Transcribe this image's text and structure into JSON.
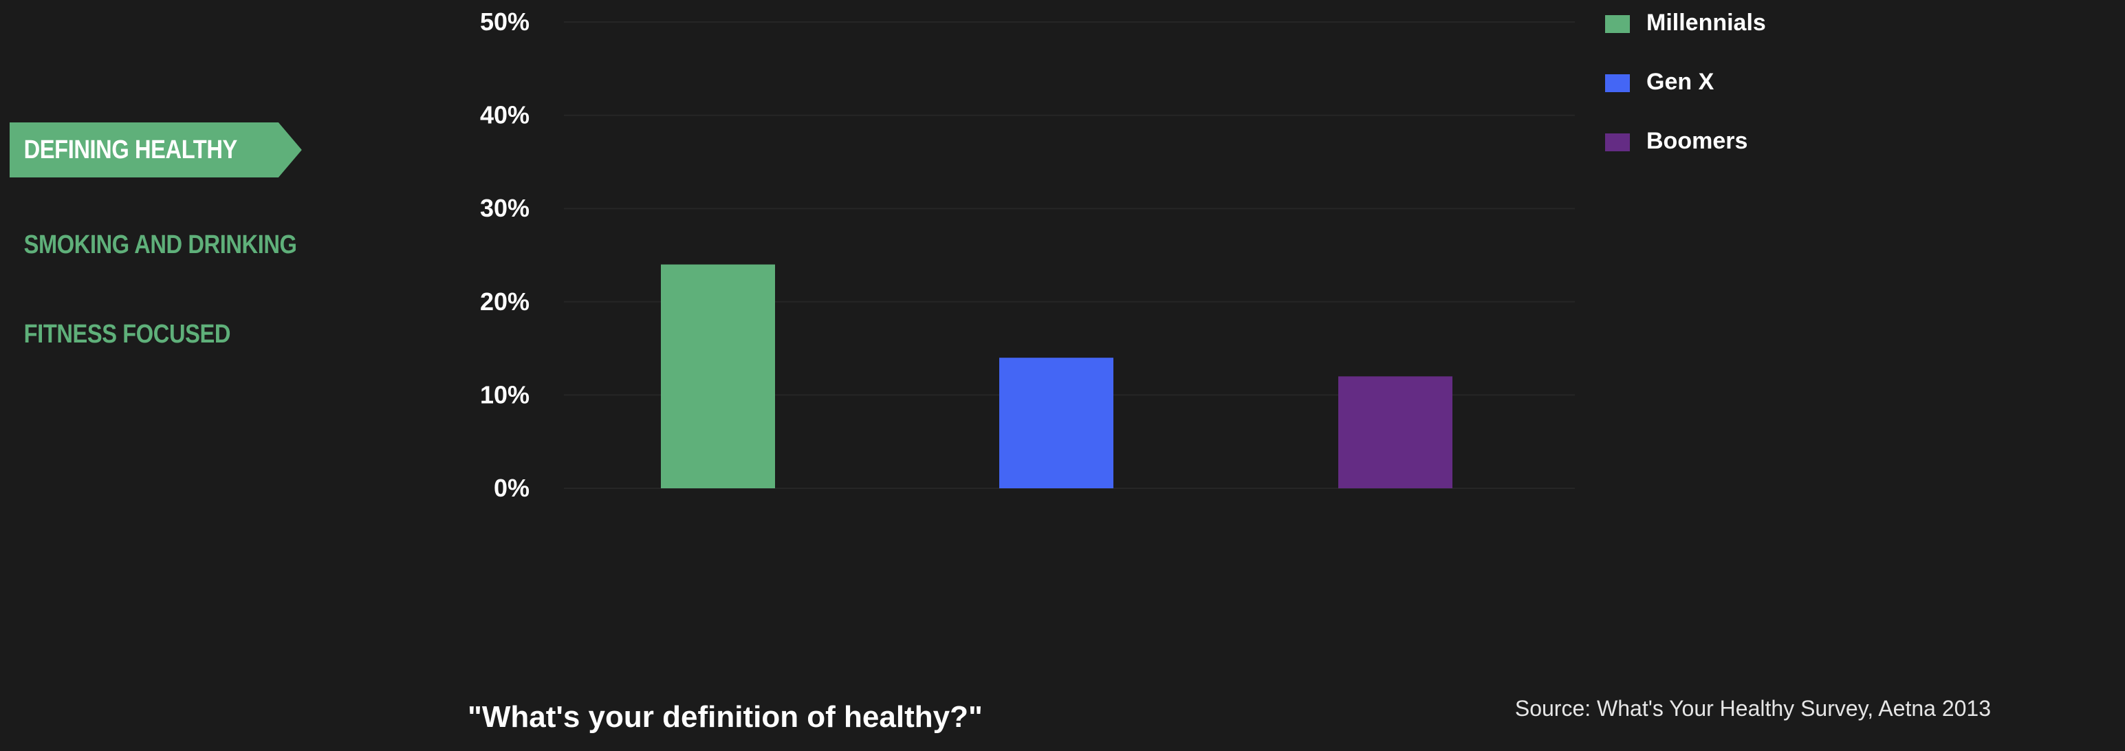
{
  "nav": {
    "items": [
      {
        "label": "DEFINING HEALTHY",
        "active": true
      },
      {
        "label": "SMOKING AND DRINKING",
        "active": false
      },
      {
        "label": "FITNESS FOCUSED",
        "active": false
      }
    ],
    "accent_color": "#5fb07a"
  },
  "legend": {
    "items": [
      {
        "label": "Millennials",
        "color": "#5fb07a"
      },
      {
        "label": "Gen X",
        "color": "#4466f5"
      },
      {
        "label": "Boomers",
        "color": "#642c84"
      }
    ]
  },
  "question": "\"What's your definition of healthy?\"",
  "source": "Source: What's Your Healthy Survey, Aetna 2013",
  "chart_data": {
    "type": "bar",
    "categories": [
      "Millennials",
      "Gen X",
      "Boomers"
    ],
    "values": [
      24,
      14,
      12
    ],
    "colors": [
      "#5fb07a",
      "#4466f5",
      "#642c84"
    ],
    "ylim": [
      0,
      50
    ],
    "yticks": [
      0,
      10,
      20,
      30,
      40,
      50
    ],
    "ytick_labels": [
      "0%",
      "10%",
      "20%",
      "30%",
      "40%",
      "50%"
    ],
    "grid": true,
    "legend_position": "top-right",
    "title": "",
    "xlabel": "",
    "ylabel": ""
  }
}
